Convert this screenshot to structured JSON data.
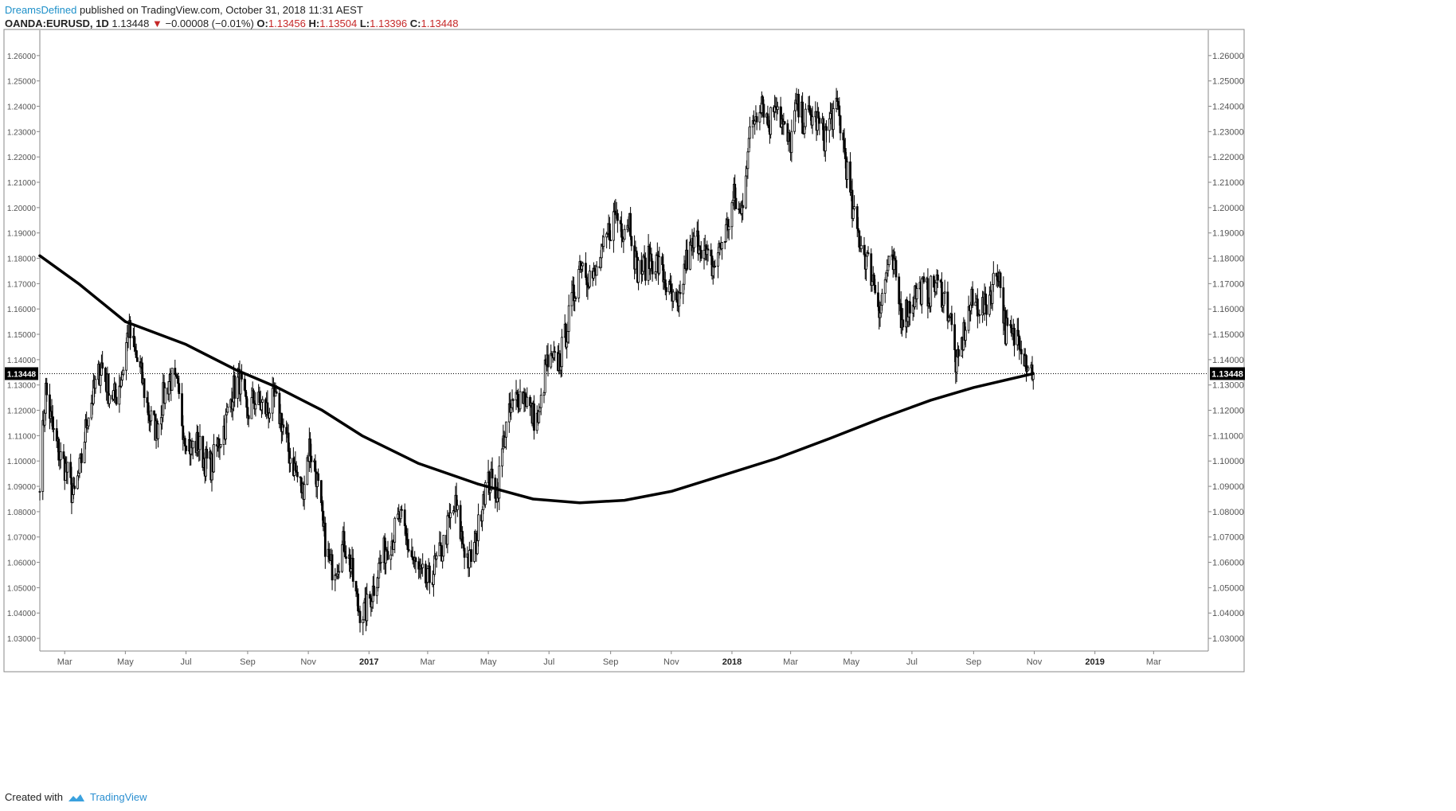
{
  "header": {
    "author": "DreamsDefined",
    "published": "published on TradingView.com, October 31, 2018 11:31 AEST"
  },
  "ohlc": {
    "symbol": "OANDA:EURUSD, 1D",
    "last": "1.13448",
    "change_arrow": "▼",
    "change": "−0.00008 (−0.01%)",
    "o_label": "O:",
    "o": "1.13456",
    "h_label": "H:",
    "h": "1.13504",
    "l_label": "L:",
    "l": "1.13396",
    "c_label": "C:",
    "c": "1.13448"
  },
  "footer": {
    "created_with": "Created with",
    "brand": "TradingView"
  },
  "colors": {
    "candle": "#000000",
    "grid_border": "#555555",
    "text": "#555555",
    "negative": "#c62828"
  },
  "chart_data": {
    "type": "line",
    "subtype": "candlestick with moving average",
    "symbol": "OANDA:EURUSD",
    "interval": "1D",
    "ylim": [
      1.025,
      1.27
    ],
    "last_price": 1.13448,
    "last_price_label": "1.13448",
    "y_ticks": [
      "1.26000",
      "1.25000",
      "1.24000",
      "1.23000",
      "1.22000",
      "1.21000",
      "1.20000",
      "1.19000",
      "1.18000",
      "1.17000",
      "1.16000",
      "1.15000",
      "1.14000",
      "1.13000",
      "1.12000",
      "1.11000",
      "1.10000",
      "1.09000",
      "1.08000",
      "1.07000",
      "1.06000",
      "1.05000",
      "1.04000",
      "1.03000"
    ],
    "x_ticks": [
      {
        "label": "Mar",
        "date": "2016-03-01",
        "bold": false
      },
      {
        "label": "May",
        "date": "2016-05-01",
        "bold": false
      },
      {
        "label": "Jul",
        "date": "2016-07-01",
        "bold": false
      },
      {
        "label": "Sep",
        "date": "2016-09-01",
        "bold": false
      },
      {
        "label": "Nov",
        "date": "2016-11-01",
        "bold": false
      },
      {
        "label": "2017",
        "date": "2017-01-01",
        "bold": true
      },
      {
        "label": "Mar",
        "date": "2017-03-01",
        "bold": false
      },
      {
        "label": "May",
        "date": "2017-05-01",
        "bold": false
      },
      {
        "label": "Jul",
        "date": "2017-07-01",
        "bold": false
      },
      {
        "label": "Sep",
        "date": "2017-09-01",
        "bold": false
      },
      {
        "label": "Nov",
        "date": "2017-11-01",
        "bold": false
      },
      {
        "label": "2018",
        "date": "2018-01-01",
        "bold": true
      },
      {
        "label": "Mar",
        "date": "2018-03-01",
        "bold": false
      },
      {
        "label": "May",
        "date": "2018-05-01",
        "bold": false
      },
      {
        "label": "Jul",
        "date": "2018-07-01",
        "bold": false
      },
      {
        "label": "Sep",
        "date": "2018-09-01",
        "bold": false
      },
      {
        "label": "Nov",
        "date": "2018-11-01",
        "bold": false
      },
      {
        "label": "2019",
        "date": "2019-01-01",
        "bold": true
      },
      {
        "label": "Mar",
        "date": "2019-03-01",
        "bold": false
      }
    ],
    "xlim": [
      "2016-02-05",
      "2019-04-25"
    ],
    "price_series": {
      "name": "",
      "points": [
        [
          "2016-02-05",
          1.094
        ],
        [
          "2016-02-11",
          1.128
        ],
        [
          "2016-02-18",
          1.112
        ],
        [
          "2016-02-25",
          1.102
        ],
        [
          "2016-03-03",
          1.096
        ],
        [
          "2016-03-10",
          1.085
        ],
        [
          "2016-03-17",
          1.098
        ],
        [
          "2016-03-24",
          1.118
        ],
        [
          "2016-03-31",
          1.128
        ],
        [
          "2016-04-07",
          1.138
        ],
        [
          "2016-04-14",
          1.128
        ],
        [
          "2016-04-21",
          1.125
        ],
        [
          "2016-04-28",
          1.135
        ],
        [
          "2016-05-04",
          1.152
        ],
        [
          "2016-05-11",
          1.142
        ],
        [
          "2016-05-18",
          1.132
        ],
        [
          "2016-05-25",
          1.118
        ],
        [
          "2016-06-01",
          1.112
        ],
        [
          "2016-06-08",
          1.125
        ],
        [
          "2016-06-15",
          1.133
        ],
        [
          "2016-06-22",
          1.128
        ],
        [
          "2016-06-29",
          1.112
        ],
        [
          "2016-07-06",
          1.105
        ],
        [
          "2016-07-13",
          1.107
        ],
        [
          "2016-07-20",
          1.1
        ],
        [
          "2016-07-27",
          1.098
        ],
        [
          "2016-08-03",
          1.108
        ],
        [
          "2016-08-10",
          1.115
        ],
        [
          "2016-08-17",
          1.128
        ],
        [
          "2016-08-24",
          1.132
        ],
        [
          "2016-08-31",
          1.118
        ],
        [
          "2016-09-07",
          1.124
        ],
        [
          "2016-09-14",
          1.122
        ],
        [
          "2016-09-21",
          1.12
        ],
        [
          "2016-09-28",
          1.124
        ],
        [
          "2016-10-05",
          1.116
        ],
        [
          "2016-10-12",
          1.104
        ],
        [
          "2016-10-19",
          1.096
        ],
        [
          "2016-10-26",
          1.088
        ],
        [
          "2016-11-02",
          1.106
        ],
        [
          "2016-11-09",
          1.095
        ],
        [
          "2016-11-16",
          1.072
        ],
        [
          "2016-11-23",
          1.058
        ],
        [
          "2016-11-30",
          1.06
        ],
        [
          "2016-12-07",
          1.068
        ],
        [
          "2016-12-14",
          1.058
        ],
        [
          "2016-12-21",
          1.042
        ],
        [
          "2016-12-28",
          1.04
        ],
        [
          "2017-01-04",
          1.048
        ],
        [
          "2017-01-11",
          1.058
        ],
        [
          "2017-01-18",
          1.066
        ],
        [
          "2017-01-25",
          1.07
        ],
        [
          "2017-02-01",
          1.078
        ],
        [
          "2017-02-08",
          1.068
        ],
        [
          "2017-02-15",
          1.06
        ],
        [
          "2017-02-22",
          1.054
        ],
        [
          "2017-03-01",
          1.052
        ],
        [
          "2017-03-08",
          1.058
        ],
        [
          "2017-03-15",
          1.064
        ],
        [
          "2017-03-22",
          1.075
        ],
        [
          "2017-03-29",
          1.082
        ],
        [
          "2017-04-05",
          1.068
        ],
        [
          "2017-04-12",
          1.06
        ],
        [
          "2017-04-19",
          1.068
        ],
        [
          "2017-04-26",
          1.088
        ],
        [
          "2017-05-03",
          1.092
        ],
        [
          "2017-05-10",
          1.088
        ],
        [
          "2017-05-17",
          1.11
        ],
        [
          "2017-05-24",
          1.12
        ],
        [
          "2017-05-31",
          1.126
        ],
        [
          "2017-06-07",
          1.126
        ],
        [
          "2017-06-14",
          1.118
        ],
        [
          "2017-06-21",
          1.116
        ],
        [
          "2017-06-28",
          1.138
        ],
        [
          "2017-07-05",
          1.138
        ],
        [
          "2017-07-12",
          1.14
        ],
        [
          "2017-07-19",
          1.152
        ],
        [
          "2017-07-26",
          1.166
        ],
        [
          "2017-08-02",
          1.18
        ],
        [
          "2017-08-09",
          1.174
        ],
        [
          "2017-08-16",
          1.172
        ],
        [
          "2017-08-23",
          1.18
        ],
        [
          "2017-08-30",
          1.19
        ],
        [
          "2017-09-06",
          1.198
        ],
        [
          "2017-09-13",
          1.192
        ],
        [
          "2017-09-20",
          1.196
        ],
        [
          "2017-09-27",
          1.176
        ],
        [
          "2017-10-04",
          1.176
        ],
        [
          "2017-10-11",
          1.18
        ],
        [
          "2017-10-18",
          1.178
        ],
        [
          "2017-10-25",
          1.172
        ],
        [
          "2017-11-01",
          1.164
        ],
        [
          "2017-11-08",
          1.158
        ],
        [
          "2017-11-15",
          1.178
        ],
        [
          "2017-11-22",
          1.184
        ],
        [
          "2017-11-29",
          1.188
        ],
        [
          "2017-12-06",
          1.18
        ],
        [
          "2017-12-13",
          1.176
        ],
        [
          "2017-12-20",
          1.184
        ],
        [
          "2017-12-27",
          1.192
        ],
        [
          "2018-01-03",
          1.204
        ],
        [
          "2018-01-10",
          1.196
        ],
        [
          "2018-01-17",
          1.224
        ],
        [
          "2018-01-24",
          1.236
        ],
        [
          "2018-01-31",
          1.244
        ],
        [
          "2018-02-07",
          1.232
        ],
        [
          "2018-02-14",
          1.244
        ],
        [
          "2018-02-21",
          1.232
        ],
        [
          "2018-02-28",
          1.224
        ],
        [
          "2018-03-07",
          1.24
        ],
        [
          "2018-03-14",
          1.234
        ],
        [
          "2018-03-21",
          1.236
        ],
        [
          "2018-03-28",
          1.234
        ],
        [
          "2018-04-04",
          1.228
        ],
        [
          "2018-04-11",
          1.236
        ],
        [
          "2018-04-18",
          1.238
        ],
        [
          "2018-04-25",
          1.22
        ],
        [
          "2018-05-02",
          1.198
        ],
        [
          "2018-05-09",
          1.188
        ],
        [
          "2018-05-16",
          1.18
        ],
        [
          "2018-05-23",
          1.172
        ],
        [
          "2018-05-30",
          1.16
        ],
        [
          "2018-06-06",
          1.176
        ],
        [
          "2018-06-13",
          1.176
        ],
        [
          "2018-06-20",
          1.158
        ],
        [
          "2018-06-27",
          1.16
        ],
        [
          "2018-07-04",
          1.166
        ],
        [
          "2018-07-11",
          1.168
        ],
        [
          "2018-07-18",
          1.166
        ],
        [
          "2018-07-25",
          1.17
        ],
        [
          "2018-08-01",
          1.166
        ],
        [
          "2018-08-08",
          1.158
        ],
        [
          "2018-08-15",
          1.136
        ],
        [
          "2018-08-22",
          1.15
        ],
        [
          "2018-08-29",
          1.162
        ],
        [
          "2018-09-05",
          1.162
        ],
        [
          "2018-09-12",
          1.16
        ],
        [
          "2018-09-19",
          1.168
        ],
        [
          "2018-09-26",
          1.176
        ],
        [
          "2018-10-03",
          1.152
        ],
        [
          "2018-10-10",
          1.148
        ],
        [
          "2018-10-17",
          1.15
        ],
        [
          "2018-10-24",
          1.14
        ],
        [
          "2018-10-31",
          1.13448
        ]
      ]
    },
    "ma_series": {
      "name": "",
      "points": [
        [
          "2016-02-05",
          1.181
        ],
        [
          "2016-03-15",
          1.17
        ],
        [
          "2016-05-01",
          1.155
        ],
        [
          "2016-07-01",
          1.146
        ],
        [
          "2016-08-20",
          1.136
        ],
        [
          "2016-10-01",
          1.129
        ],
        [
          "2016-11-15",
          1.12
        ],
        [
          "2016-12-25",
          1.11
        ],
        [
          "2017-02-20",
          1.099
        ],
        [
          "2017-04-20",
          1.091
        ],
        [
          "2017-06-15",
          1.085
        ],
        [
          "2017-08-01",
          1.0835
        ],
        [
          "2017-09-15",
          1.0845
        ],
        [
          "2017-11-01",
          1.088
        ],
        [
          "2017-12-20",
          1.094
        ],
        [
          "2018-02-15",
          1.101
        ],
        [
          "2018-04-10",
          1.109
        ],
        [
          "2018-06-01",
          1.117
        ],
        [
          "2018-07-20",
          1.124
        ],
        [
          "2018-09-01",
          1.129
        ],
        [
          "2018-10-31",
          1.1345
        ]
      ]
    }
  }
}
